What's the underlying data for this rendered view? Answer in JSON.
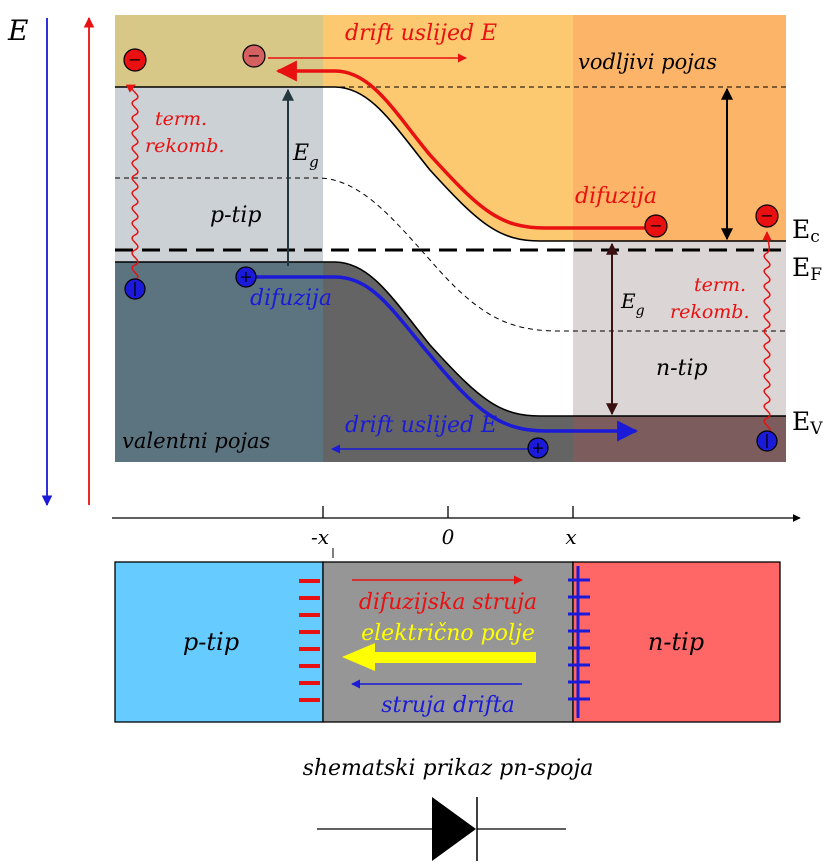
{
  "energy_axis": {
    "label": "E"
  },
  "band_labels": {
    "conduction_band": "vodljivi pojas",
    "valence_band": "valentni pojas",
    "p_type": "p-tip",
    "n_type": "n-tip",
    "band_gap_left": "E",
    "band_gap_left_sub": "g",
    "band_gap_right": "E",
    "band_gap_right_sub": "g"
  },
  "level_labels": {
    "ec": "E",
    "ec_sub": "c",
    "ef": "E",
    "ef_sub": "F",
    "ev": "E",
    "ev_sub": "V"
  },
  "process_labels": {
    "drift_electrons": "drift uslijed E",
    "drift_holes": "drift uslijed E",
    "diffusion_electrons": "difuzija",
    "diffusion_holes": "difuzija",
    "term_rekomb_left_1": "term.",
    "term_rekomb_left_2": "rekomb.",
    "term_rekomb_right_1": "term.",
    "term_rekomb_right_2": "rekomb."
  },
  "x_axis": {
    "tick_neg": "-x",
    "tick_zero": "0",
    "tick_pos": "x"
  },
  "schematic": {
    "p_type": "p-tip",
    "n_type": "n-tip",
    "diffusion_current": "difuzijska struja",
    "electric_field": "električno polje",
    "drift_current": "struja drifta",
    "caption": "shematski prikaz pn-spoja"
  },
  "particles": {
    "electron_symbol": "−",
    "hole_symbol": "+"
  },
  "colors": {
    "conduction_p": "#d8c888",
    "conduction_mid": "#fcc870",
    "conduction_n": "#fcb468",
    "valence_p": "#5c7480",
    "valence_mid": "#646464",
    "valence_n": "#7c5c5c",
    "gap_p": "#cbd1d5",
    "gap_n": "#dbd5d5",
    "electron": "#e81010",
    "hole": "#1a1ad8",
    "p_region": "#66ccff",
    "depletion": "#969696",
    "n_region": "#ff6666",
    "field": "#ffff00"
  }
}
